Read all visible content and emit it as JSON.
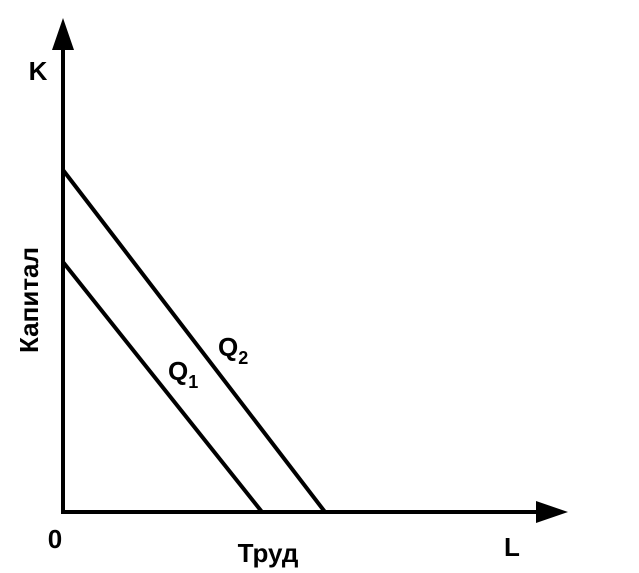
{
  "axes": {
    "y_symbol": "K",
    "x_symbol": "L",
    "origin": "0",
    "y_label": "Капитал",
    "x_label": "Труд"
  },
  "curves": [
    {
      "label": "Q",
      "subscript": "1"
    },
    {
      "label": "Q",
      "subscript": "2"
    }
  ]
}
